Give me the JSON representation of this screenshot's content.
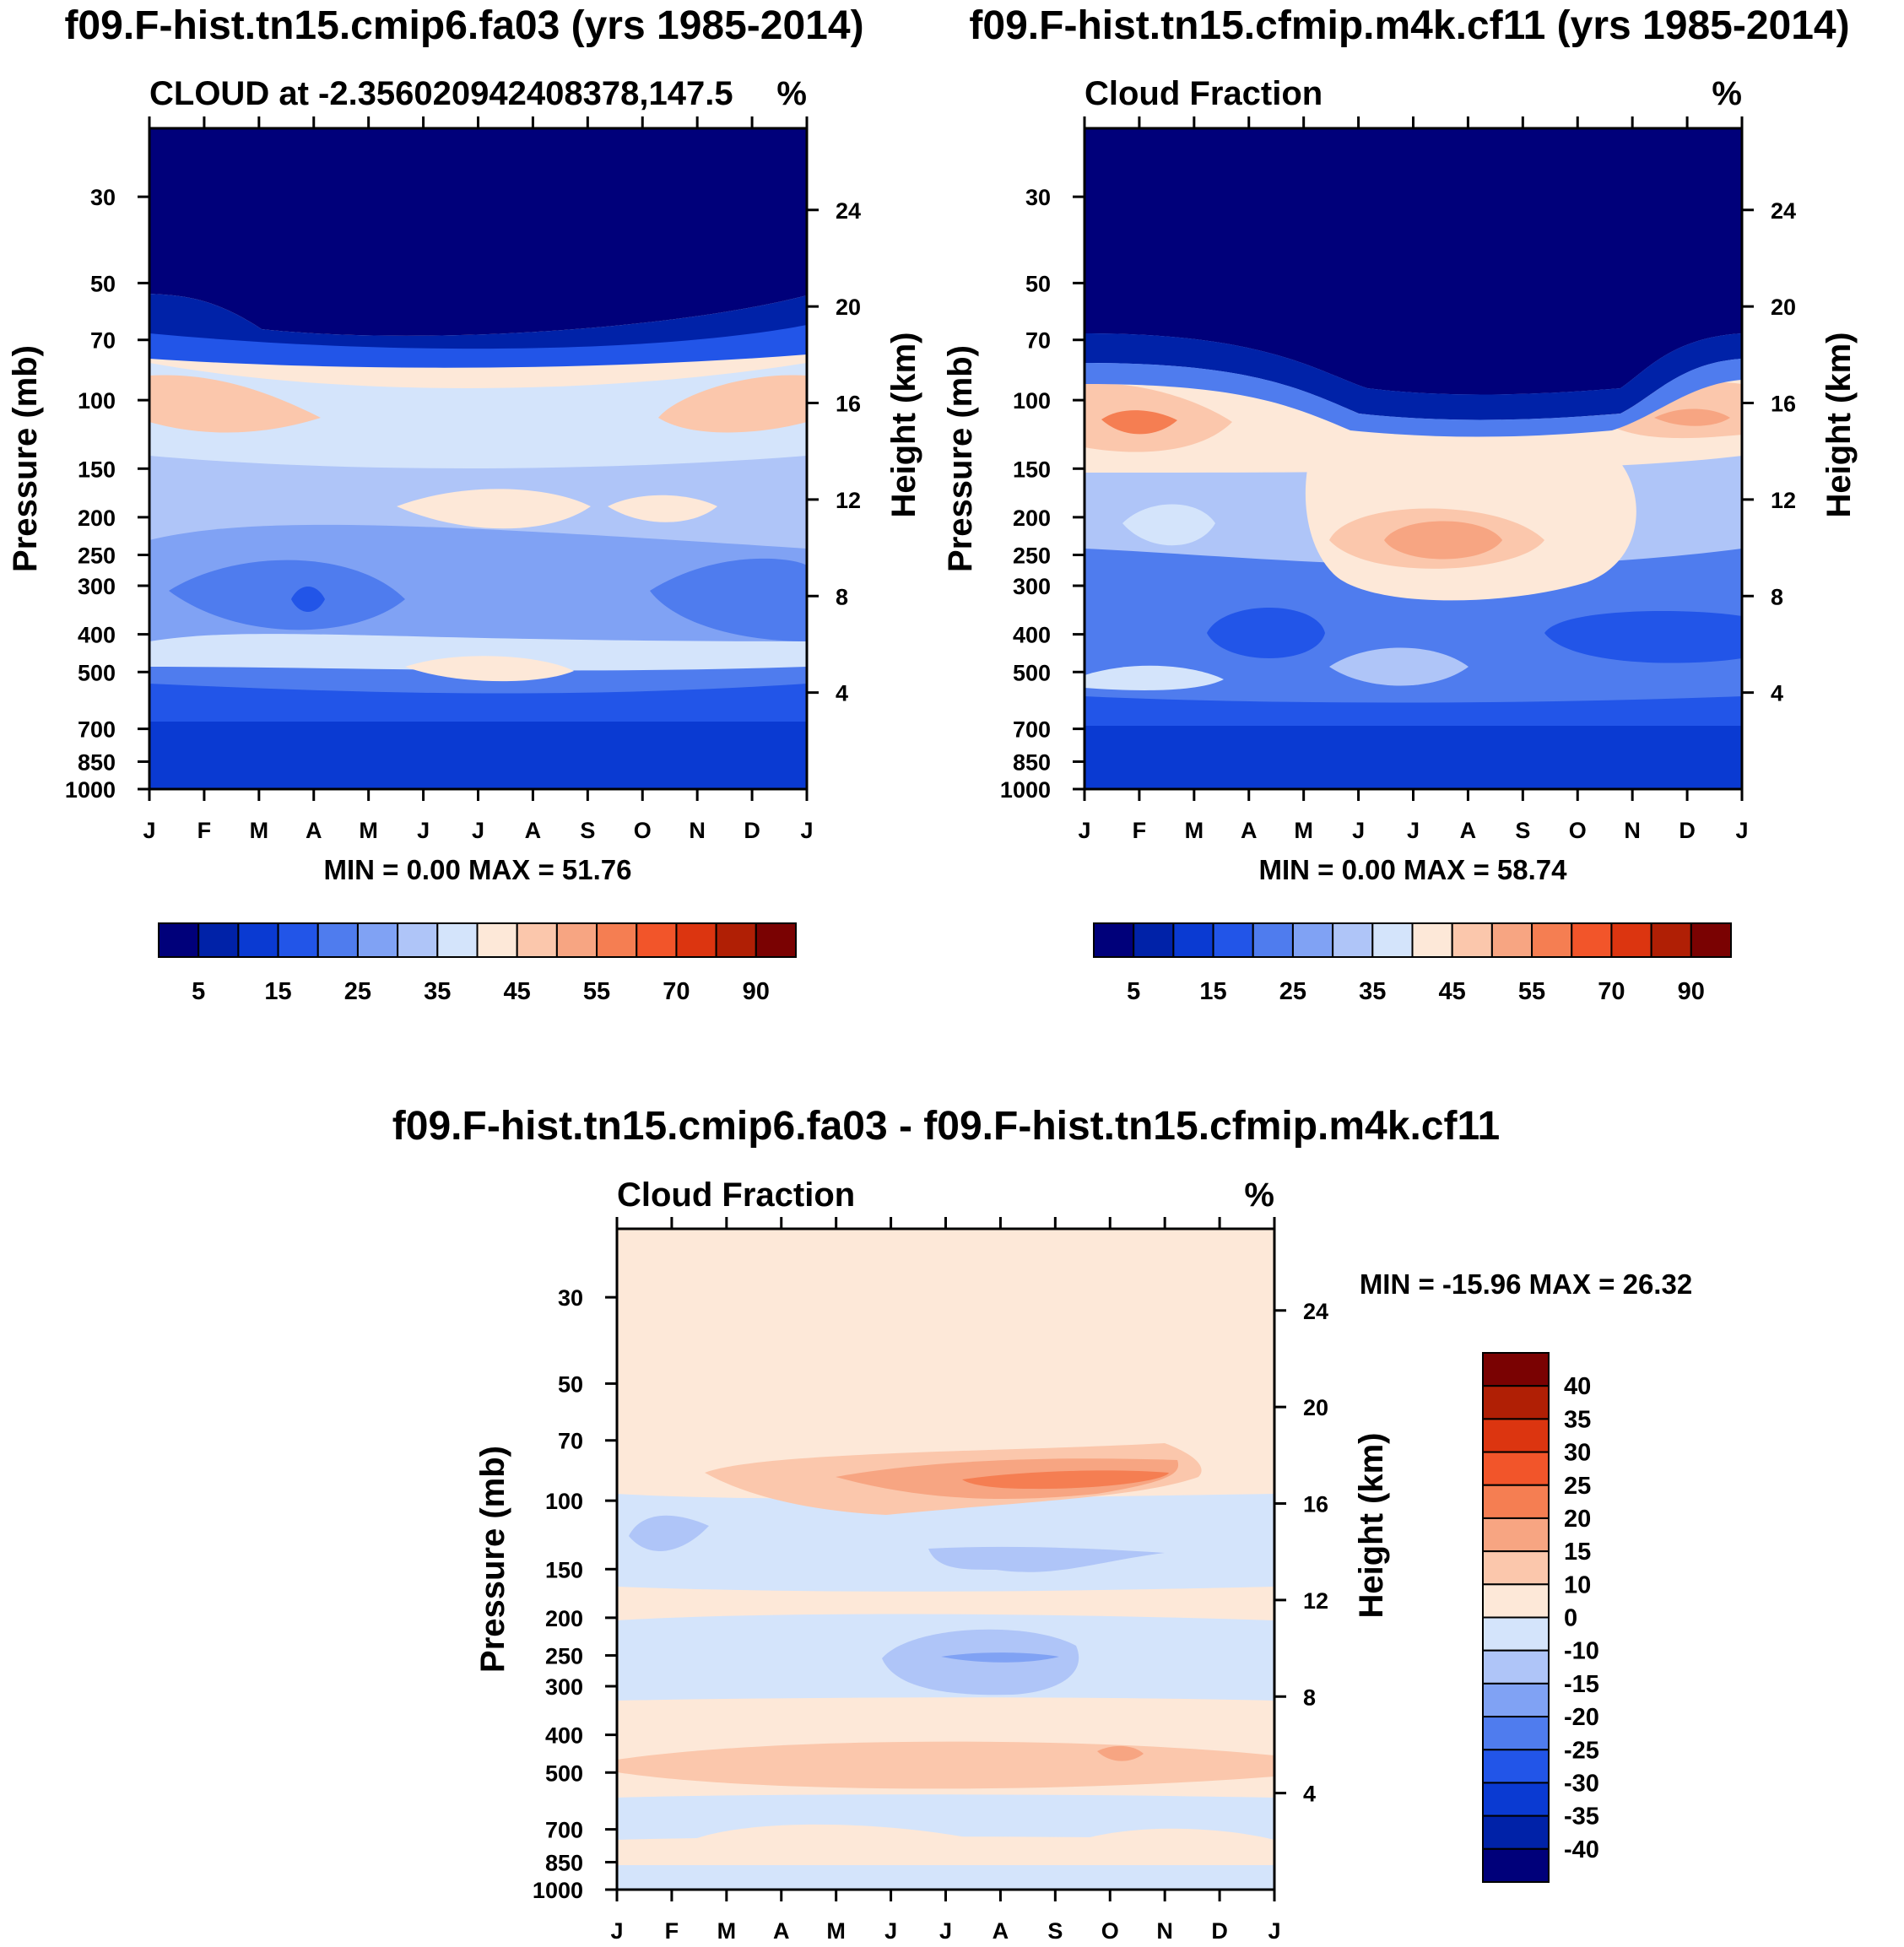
{
  "figure": {
    "panels": [
      {
        "title": "f09.F-hist.tn15.cmip6.fa03 (yrs 1985-2014)",
        "left_label": "CLOUD at -2.356020942408378,147.5",
        "right_label": "%",
        "min_max": "MIN =   0.00 MAX =  51.76"
      },
      {
        "title": "f09.F-hist.tn15.cfmip.m4k.cf11 (yrs 1985-2014)",
        "left_label": "Cloud Fraction",
        "right_label": "%",
        "min_max": "MIN =   0.00 MAX =  58.74"
      },
      {
        "title": "f09.F-hist.tn15.cmip6.fa03 - f09.F-hist.tn15.cfmip.m4k.cf11",
        "left_label": "Cloud Fraction",
        "right_label": "%",
        "min_max": "MIN = -15.96 MAX =  26.32"
      }
    ],
    "ylabel": "Pressure (mb)",
    "y2label": "Height (km)"
  },
  "chart_data": [
    {
      "type": "heatmap",
      "title": "f09.F-hist.tn15.cmip6.fa03 (yrs 1985-2014)",
      "subtitle": "CLOUD at -2.356020942408378,147.5",
      "units": "%",
      "xlabel": "",
      "ylabel": "Pressure (mb)",
      "y2label": "Height (km)",
      "x_ticks": [
        "J",
        "F",
        "M",
        "A",
        "M",
        "J",
        "J",
        "A",
        "S",
        "O",
        "N",
        "D",
        "J"
      ],
      "y_ticks": [
        30,
        50,
        70,
        100,
        150,
        200,
        250,
        300,
        400,
        500,
        700,
        850,
        1000
      ],
      "y2_ticks": [
        24,
        20,
        16,
        12,
        8,
        4
      ],
      "ylim": [
        20,
        1000
      ],
      "colorbar_levels": [
        5,
        10,
        15,
        20,
        25,
        30,
        35,
        40,
        45,
        50,
        55,
        60,
        70,
        80,
        90
      ],
      "colorbar_labels": [
        "5",
        "15",
        "25",
        "35",
        "45",
        "55",
        "70",
        "90"
      ],
      "min": 0.0,
      "max": 51.76
    },
    {
      "type": "heatmap",
      "title": "f09.F-hist.tn15.cfmip.m4k.cf11 (yrs 1985-2014)",
      "subtitle": "Cloud Fraction",
      "units": "%",
      "xlabel": "",
      "ylabel": "Pressure (mb)",
      "y2label": "Height (km)",
      "x_ticks": [
        "J",
        "F",
        "M",
        "A",
        "M",
        "J",
        "J",
        "A",
        "S",
        "O",
        "N",
        "D",
        "J"
      ],
      "y_ticks": [
        30,
        50,
        70,
        100,
        150,
        200,
        250,
        300,
        400,
        500,
        700,
        850,
        1000
      ],
      "y2_ticks": [
        24,
        20,
        16,
        12,
        8,
        4
      ],
      "ylim": [
        20,
        1000
      ],
      "colorbar_levels": [
        5,
        10,
        15,
        20,
        25,
        30,
        35,
        40,
        45,
        50,
        55,
        60,
        70,
        80,
        90
      ],
      "colorbar_labels": [
        "5",
        "15",
        "25",
        "35",
        "45",
        "55",
        "70",
        "90"
      ],
      "min": 0.0,
      "max": 58.74
    },
    {
      "type": "heatmap",
      "title": "f09.F-hist.tn15.cmip6.fa03 - f09.F-hist.tn15.cfmip.m4k.cf11",
      "subtitle": "Cloud Fraction",
      "units": "%",
      "xlabel": "",
      "ylabel": "Pressure (mb)",
      "y2label": "Height (km)",
      "x_ticks": [
        "J",
        "F",
        "M",
        "A",
        "M",
        "J",
        "J",
        "A",
        "S",
        "O",
        "N",
        "D",
        "J"
      ],
      "y_ticks": [
        30,
        50,
        70,
        100,
        150,
        200,
        250,
        300,
        400,
        500,
        700,
        850,
        1000
      ],
      "y2_ticks": [
        24,
        20,
        16,
        12,
        8,
        4
      ],
      "ylim": [
        20,
        1000
      ],
      "colorbar_levels": [
        -40,
        -35,
        -30,
        -25,
        -20,
        -15,
        -10,
        0,
        10,
        15,
        20,
        25,
        30,
        35,
        40
      ],
      "colorbar_labels": [
        "40",
        "35",
        "30",
        "25",
        "20",
        "15",
        "10",
        "0",
        "-10",
        "-15",
        "-20",
        "-25",
        "-30",
        "-35",
        "-40"
      ],
      "min": -15.96,
      "max": 26.32
    }
  ],
  "palettes": {
    "abs": [
      "#00007a",
      "#0022a8",
      "#0a3ad2",
      "#2255e8",
      "#4f7cee",
      "#80a2f4",
      "#afc5f8",
      "#d4e4fb",
      "#fde8d8",
      "#fbc7ac",
      "#f7a582",
      "#f57e52",
      "#f2552a",
      "#dc3510",
      "#b01f05",
      "#7a0202"
    ],
    "diff": [
      "#7a0202",
      "#b01f05",
      "#dc3510",
      "#f2552a",
      "#f57e52",
      "#f7a582",
      "#fbc7ac",
      "#fde8d8",
      "#d4e4fb",
      "#afc5f8",
      "#80a2f4",
      "#4f7cee",
      "#2255e8",
      "#0a3ad2",
      "#0022a8",
      "#00007a"
    ]
  }
}
